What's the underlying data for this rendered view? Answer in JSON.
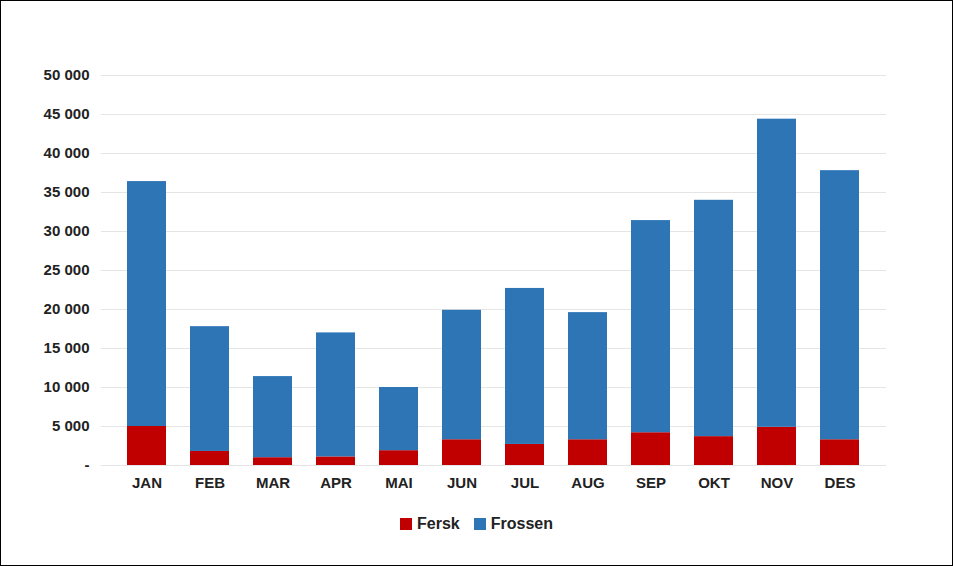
{
  "chart_data": {
    "type": "bar",
    "stacked": true,
    "categories": [
      "JAN",
      "FEB",
      "MAR",
      "APR",
      "MAI",
      "JUN",
      "JUL",
      "AUG",
      "SEP",
      "OKT",
      "NOV",
      "DES"
    ],
    "series": [
      {
        "name": "Fersk",
        "color": "#c00000",
        "values": [
          5000,
          1800,
          1000,
          1100,
          1900,
          3300,
          2700,
          3300,
          4200,
          3700,
          4900,
          3300
        ]
      },
      {
        "name": "Frossen",
        "color": "#2e75b6",
        "values": [
          31400,
          16000,
          10400,
          15900,
          8100,
          16600,
          20000,
          16300,
          27200,
          30300,
          39500,
          34500
        ]
      }
    ],
    "ylim": [
      0,
      50000
    ],
    "yticks": [
      {
        "value": 0,
        "label": "-"
      },
      {
        "value": 5000,
        "label": "5 000"
      },
      {
        "value": 10000,
        "label": "10 000"
      },
      {
        "value": 15000,
        "label": "15 000"
      },
      {
        "value": 20000,
        "label": "20 000"
      },
      {
        "value": 25000,
        "label": "25 000"
      },
      {
        "value": 30000,
        "label": "30 000"
      },
      {
        "value": 35000,
        "label": "35 000"
      },
      {
        "value": 40000,
        "label": "40 000"
      },
      {
        "value": 45000,
        "label": "45 000"
      },
      {
        "value": 50000,
        "label": "50 000"
      }
    ],
    "grid": true,
    "legend": "bottom"
  }
}
